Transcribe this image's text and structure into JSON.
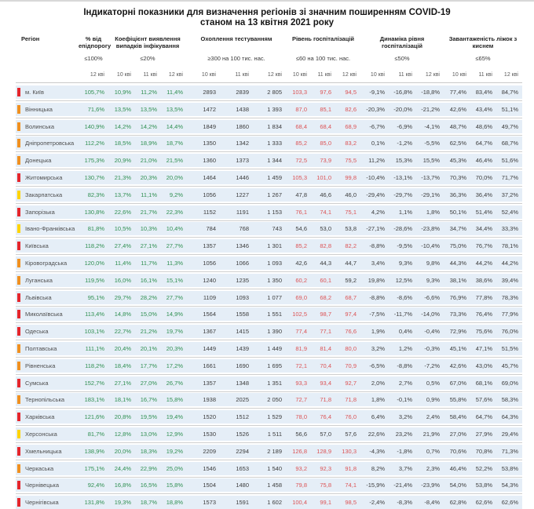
{
  "title": {
    "line1": "Індикаторні показники для визначення регіонів зі значним поширенням COVID-19",
    "line2": "станом на 13 квітня 2021 року"
  },
  "colors": {
    "green_value": "#2e8f50",
    "red_value": "#dc5355",
    "dark_value": "#3c3c3c",
    "row_background": "#e5eef7",
    "marker": {
      "red": "#e5262c",
      "orange": "#f09020",
      "yellow": "#ffd403"
    }
  },
  "columns": {
    "region_label": "Регіон",
    "groups": [
      {
        "id": "epid",
        "label": "% від епідпорогу",
        "threshold": "≤100%",
        "dates": [
          "12 кві"
        ],
        "value_color": "green"
      },
      {
        "id": "coef",
        "label": "Коефіцієнт виявлення випадків інфікування",
        "threshold": "≤20%",
        "dates": [
          "10 кві",
          "11 кві",
          "12 кві"
        ],
        "value_color": "green"
      },
      {
        "id": "test",
        "label": "Охоплення тестуванням",
        "threshold": "≥300 на 100 тис. нас.",
        "dates": [
          "10 кві",
          "11 кві",
          "12 кві"
        ],
        "value_color": "dark"
      },
      {
        "id": "hosp",
        "label": "Рівень госпіталізацій",
        "threshold": "≤60 на 100 тис. нас.",
        "dates": [
          "10 кві",
          "11 кві",
          "12 кві"
        ],
        "value_color": "dark",
        "red_above": 60
      },
      {
        "id": "dyn",
        "label": "Динаміка рівня госпіталізацій",
        "threshold": "≤50%",
        "dates": [
          "10 кві",
          "11 кві",
          "12 кві"
        ],
        "value_color": "dark"
      },
      {
        "id": "beds",
        "label": "Завантаженість ліжок з киснем",
        "threshold": "≤65%",
        "dates": [
          "10 кві",
          "11 кві",
          "12 кві"
        ],
        "value_color": "dark"
      }
    ]
  },
  "rows": [
    {
      "marker": "red",
      "name": "м. Київ",
      "epid": "105,7%",
      "coef": [
        "10,9%",
        "11,2%",
        "11,4%"
      ],
      "test": [
        "2893",
        "2839",
        "2 805"
      ],
      "hosp": [
        "103,3",
        "97,6",
        "94,5"
      ],
      "dyn": [
        "-9,1%",
        "-16,8%",
        "-18,8%"
      ],
      "beds": [
        "77,4%",
        "83,4%",
        "84,7%"
      ]
    },
    {
      "marker": "orange",
      "name": "Вінницька",
      "epid": "71,6%",
      "coef": [
        "13,5%",
        "13,5%",
        "13,5%"
      ],
      "test": [
        "1472",
        "1438",
        "1 393"
      ],
      "hosp": [
        "87,0",
        "85,1",
        "82,6"
      ],
      "dyn": [
        "-20,3%",
        "-20,0%",
        "-21,2%"
      ],
      "beds": [
        "42,6%",
        "43,4%",
        "51,1%"
      ]
    },
    {
      "marker": "orange",
      "name": "Волинська",
      "epid": "140,9%",
      "coef": [
        "14,2%",
        "14,2%",
        "14,4%"
      ],
      "test": [
        "1849",
        "1860",
        "1 834"
      ],
      "hosp": [
        "68,4",
        "68,4",
        "68,9"
      ],
      "dyn": [
        "-6,7%",
        "-6,9%",
        "-4,1%"
      ],
      "beds": [
        "48,7%",
        "48,6%",
        "49,7%"
      ]
    },
    {
      "marker": "orange",
      "name": "Дніпропетровська",
      "epid": "112,2%",
      "coef": [
        "18,5%",
        "18,9%",
        "18,7%"
      ],
      "test": [
        "1350",
        "1342",
        "1 333"
      ],
      "hosp": [
        "85,2",
        "85,0",
        "83,2"
      ],
      "dyn": [
        "0,1%",
        "-1,2%",
        "-5,5%"
      ],
      "beds": [
        "62,5%",
        "64,7%",
        "68,7%"
      ]
    },
    {
      "marker": "orange",
      "name": "Донецька",
      "epid": "175,3%",
      "coef": [
        "20,9%",
        "21,0%",
        "21,5%"
      ],
      "test": [
        "1360",
        "1373",
        "1 344"
      ],
      "hosp": [
        "72,5",
        "73,9",
        "75,5"
      ],
      "dyn": [
        "11,2%",
        "15,3%",
        "15,5%"
      ],
      "beds": [
        "45,3%",
        "46,4%",
        "51,6%"
      ]
    },
    {
      "marker": "red",
      "name": "Житомирська",
      "epid": "130,7%",
      "coef": [
        "21,3%",
        "20,3%",
        "20,0%"
      ],
      "test": [
        "1464",
        "1446",
        "1 459"
      ],
      "hosp": [
        "105,3",
        "101,0",
        "99,8"
      ],
      "dyn": [
        "-10,4%",
        "-13,1%",
        "-13,7%"
      ],
      "beds": [
        "70,3%",
        "70,0%",
        "71,7%"
      ]
    },
    {
      "marker": "yellow",
      "name": "Закарпатська",
      "epid": "82,3%",
      "coef": [
        "13,7%",
        "11,1%",
        "9,2%"
      ],
      "test": [
        "1056",
        "1227",
        "1 267"
      ],
      "hosp": [
        "47,8",
        "46,6",
        "46,0"
      ],
      "dyn": [
        "-29,4%",
        "-29,7%",
        "-29,1%"
      ],
      "beds": [
        "36,3%",
        "36,4%",
        "37,2%"
      ]
    },
    {
      "marker": "red",
      "name": "Запорізька",
      "epid": "130,8%",
      "coef": [
        "22,6%",
        "21,7%",
        "22,3%"
      ],
      "test": [
        "1152",
        "1191",
        "1 153"
      ],
      "hosp": [
        "76,1",
        "74,1",
        "75,1"
      ],
      "dyn": [
        "4,2%",
        "1,1%",
        "1,8%"
      ],
      "beds": [
        "50,1%",
        "51,4%",
        "52,4%"
      ]
    },
    {
      "marker": "yellow",
      "name": "Івано-Франківська",
      "epid": "81,8%",
      "coef": [
        "10,5%",
        "10,3%",
        "10,4%"
      ],
      "test": [
        "784",
        "768",
        "743"
      ],
      "hosp": [
        "54,6",
        "53,0",
        "53,8"
      ],
      "dyn": [
        "-27,1%",
        "-28,6%",
        "-23,8%"
      ],
      "beds": [
        "34,7%",
        "34,4%",
        "33,3%"
      ]
    },
    {
      "marker": "red",
      "name": "Київська",
      "epid": "118,2%",
      "coef": [
        "27,4%",
        "27,1%",
        "27,7%"
      ],
      "test": [
        "1357",
        "1346",
        "1 301"
      ],
      "hosp": [
        "85,2",
        "82,8",
        "82,2"
      ],
      "dyn": [
        "-8,8%",
        "-9,5%",
        "-10,4%"
      ],
      "beds": [
        "75,0%",
        "76,7%",
        "78,1%"
      ]
    },
    {
      "marker": "orange",
      "name": "Кіровоградська",
      "epid": "120,0%",
      "coef": [
        "11,4%",
        "11,7%",
        "11,3%"
      ],
      "test": [
        "1056",
        "1066",
        "1 093"
      ],
      "hosp": [
        "42,6",
        "44,3",
        "44,7"
      ],
      "dyn": [
        "3,4%",
        "9,3%",
        "9,8%"
      ],
      "beds": [
        "44,3%",
        "44,2%",
        "44,2%"
      ]
    },
    {
      "marker": "orange",
      "name": "Луганська",
      "epid": "119,5%",
      "coef": [
        "16,0%",
        "16,1%",
        "15,1%"
      ],
      "test": [
        "1240",
        "1235",
        "1 350"
      ],
      "hosp": [
        "60,2",
        "60,1",
        "59,2"
      ],
      "dyn": [
        "19,8%",
        "12,5%",
        "9,3%"
      ],
      "beds": [
        "38,1%",
        "38,6%",
        "39,4%"
      ]
    },
    {
      "marker": "red",
      "name": "Львівська",
      "epid": "95,1%",
      "coef": [
        "29,7%",
        "28,2%",
        "27,7%"
      ],
      "test": [
        "1109",
        "1093",
        "1 077"
      ],
      "hosp": [
        "69,0",
        "68,2",
        "68,7"
      ],
      "dyn": [
        "-8,8%",
        "-8,6%",
        "-6,6%"
      ],
      "beds": [
        "76,9%",
        "77,8%",
        "78,3%"
      ]
    },
    {
      "marker": "red",
      "name": "Миколаївська",
      "epid": "113,4%",
      "coef": [
        "14,8%",
        "15,0%",
        "14,9%"
      ],
      "test": [
        "1564",
        "1558",
        "1 551"
      ],
      "hosp": [
        "102,5",
        "98,7",
        "97,4"
      ],
      "dyn": [
        "-7,5%",
        "-11,7%",
        "-14,0%"
      ],
      "beds": [
        "73,3%",
        "76,4%",
        "77,9%"
      ]
    },
    {
      "marker": "red",
      "name": "Одеська",
      "epid": "103,1%",
      "coef": [
        "22,7%",
        "21,2%",
        "19,7%"
      ],
      "test": [
        "1367",
        "1415",
        "1 390"
      ],
      "hosp": [
        "77,4",
        "77,1",
        "76,6"
      ],
      "dyn": [
        "1,9%",
        "0,4%",
        "-0,4%"
      ],
      "beds": [
        "72,9%",
        "75,6%",
        "76,0%"
      ]
    },
    {
      "marker": "orange",
      "name": "Полтавська",
      "epid": "111,1%",
      "coef": [
        "20,4%",
        "20,1%",
        "20,3%"
      ],
      "test": [
        "1449",
        "1439",
        "1 449"
      ],
      "hosp": [
        "81,9",
        "81,4",
        "80,0"
      ],
      "dyn": [
        "3,2%",
        "1,2%",
        "-0,3%"
      ],
      "beds": [
        "45,1%",
        "47,1%",
        "51,5%"
      ]
    },
    {
      "marker": "orange",
      "name": "Рівненська",
      "epid": "118,2%",
      "coef": [
        "18,4%",
        "17,7%",
        "17,2%"
      ],
      "test": [
        "1661",
        "1690",
        "1 695"
      ],
      "hosp": [
        "72,1",
        "70,4",
        "70,9"
      ],
      "dyn": [
        "-6,5%",
        "-8,8%",
        "-7,2%"
      ],
      "beds": [
        "42,6%",
        "43,0%",
        "45,7%"
      ]
    },
    {
      "marker": "red",
      "name": "Сумська",
      "epid": "152,7%",
      "coef": [
        "27,1%",
        "27,0%",
        "26,7%"
      ],
      "test": [
        "1357",
        "1348",
        "1 351"
      ],
      "hosp": [
        "93,3",
        "93,4",
        "92,7"
      ],
      "dyn": [
        "2,0%",
        "2,7%",
        "0,5%"
      ],
      "beds": [
        "67,0%",
        "68,1%",
        "69,0%"
      ]
    },
    {
      "marker": "orange",
      "name": "Тернопільська",
      "epid": "183,1%",
      "coef": [
        "18,1%",
        "16,7%",
        "15,8%"
      ],
      "test": [
        "1938",
        "2025",
        "2 050"
      ],
      "hosp": [
        "72,7",
        "71,8",
        "71,8"
      ],
      "dyn": [
        "1,8%",
        "-0,1%",
        "0,9%"
      ],
      "beds": [
        "55,8%",
        "57,6%",
        "58,3%"
      ]
    },
    {
      "marker": "red",
      "name": "Харківська",
      "epid": "121,6%",
      "coef": [
        "20,8%",
        "19,5%",
        "19,4%"
      ],
      "test": [
        "1520",
        "1512",
        "1 529"
      ],
      "hosp": [
        "78,0",
        "76,4",
        "76,0"
      ],
      "dyn": [
        "6,4%",
        "3,2%",
        "2,4%"
      ],
      "beds": [
        "58,4%",
        "64,7%",
        "64,3%"
      ]
    },
    {
      "marker": "yellow",
      "name": "Херсонська",
      "epid": "81,7%",
      "coef": [
        "12,8%",
        "13,0%",
        "12,9%"
      ],
      "test": [
        "1530",
        "1526",
        "1 511"
      ],
      "hosp": [
        "56,6",
        "57,0",
        "57,6"
      ],
      "dyn": [
        "22,6%",
        "23,2%",
        "21,9%"
      ],
      "beds": [
        "27,0%",
        "27,9%",
        "29,4%"
      ]
    },
    {
      "marker": "red",
      "name": "Хмельницька",
      "epid": "138,9%",
      "coef": [
        "20,0%",
        "18,3%",
        "19,2%"
      ],
      "test": [
        "2209",
        "2294",
        "2 189"
      ],
      "hosp": [
        "126,8",
        "128,9",
        "130,3"
      ],
      "dyn": [
        "-4,3%",
        "-1,8%",
        "0,7%"
      ],
      "beds": [
        "70,6%",
        "70,8%",
        "71,3%"
      ]
    },
    {
      "marker": "orange",
      "name": "Черкаська",
      "epid": "175,1%",
      "coef": [
        "24,4%",
        "22,9%",
        "25,0%"
      ],
      "test": [
        "1546",
        "1653",
        "1 540"
      ],
      "hosp": [
        "93,2",
        "92,3",
        "91,8"
      ],
      "dyn": [
        "8,2%",
        "3,7%",
        "2,3%"
      ],
      "beds": [
        "46,4%",
        "52,2%",
        "53,8%"
      ]
    },
    {
      "marker": "red",
      "name": "Чернівецька",
      "epid": "92,4%",
      "coef": [
        "16,8%",
        "16,5%",
        "15,8%"
      ],
      "test": [
        "1504",
        "1480",
        "1 458"
      ],
      "hosp": [
        "79,8",
        "75,8",
        "74,1"
      ],
      "dyn": [
        "-15,9%",
        "-21,4%",
        "-23,9%"
      ],
      "beds": [
        "54,0%",
        "53,8%",
        "54,3%"
      ]
    },
    {
      "marker": "red",
      "name": "Чернігівська",
      "epid": "131,8%",
      "coef": [
        "19,3%",
        "18,7%",
        "18,8%"
      ],
      "test": [
        "1573",
        "1591",
        "1 602"
      ],
      "hosp": [
        "100,4",
        "99,1",
        "98,5"
      ],
      "dyn": [
        "-2,4%",
        "-8,3%",
        "-8,4%"
      ],
      "beds": [
        "62,8%",
        "62,6%",
        "62,6%"
      ]
    }
  ]
}
